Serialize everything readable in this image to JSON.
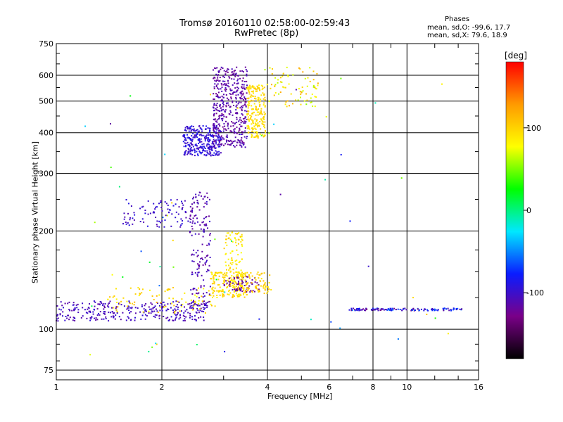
{
  "header": {
    "title": "Tromsø 20160110 02:58:00-02:59:43",
    "subtitle": "RwPretec (8p)"
  },
  "stats": {
    "heading": "Phases",
    "line_o": "mean, sd,O: -99.6, 17.7",
    "line_x": "mean, sd,X:  79.6, 18.9"
  },
  "colorbar": {
    "label": "[deg]",
    "ticks": [
      "100",
      "0",
      "-100"
    ],
    "tick_values": [
      100,
      0,
      -100
    ],
    "range": [
      -180,
      180
    ],
    "colors": [
      "#000000",
      "#7a0088",
      "#0a1cff",
      "#00e8ff",
      "#00ff00",
      "#ffff00",
      "#ff9a00",
      "#ff0000"
    ]
  },
  "chart_data": {
    "type": "scatter",
    "xlabel": "Frequency [MHz]",
    "ylabel": "Stationary phase Virtual Height [km]",
    "xscale": "log",
    "yscale": "log",
    "xlim": [
      1,
      16
    ],
    "ylim": [
      70,
      750
    ],
    "x_ticks": [
      1,
      2,
      4,
      6,
      8,
      10,
      16
    ],
    "x_tick_labels": [
      "1",
      "2",
      "4",
      "6",
      "8",
      "10",
      "16"
    ],
    "y_ticks": [
      75,
      100,
      200,
      300,
      400,
      500,
      600,
      750
    ],
    "y_tick_labels": [
      "75",
      "100",
      "200",
      "300",
      "400",
      "500",
      "600",
      "750"
    ],
    "grid": true,
    "series": [
      {
        "fmin": 1.0,
        "fmax": 2.7,
        "hmin": 106,
        "hmax": 122,
        "phase": -105,
        "spread": 12,
        "n": 320
      },
      {
        "fmin": 1.4,
        "fmax": 2.9,
        "hmin": 112,
        "hmax": 135,
        "phase": 95,
        "spread": 20,
        "n": 90
      },
      {
        "fmin": 2.4,
        "fmax": 2.75,
        "hmin": 118,
        "hmax": 265,
        "phase": -110,
        "spread": 12,
        "n": 160
      },
      {
        "fmin": 1.55,
        "fmax": 2.4,
        "hmin": 205,
        "hmax": 250,
        "phase": -100,
        "spread": 12,
        "n": 90
      },
      {
        "fmin": 2.75,
        "fmax": 3.5,
        "hmin": 125,
        "hmax": 150,
        "phase": 95,
        "spread": 15,
        "n": 180
      },
      {
        "fmin": 3.0,
        "fmax": 3.4,
        "hmin": 130,
        "hmax": 200,
        "phase": 90,
        "spread": 15,
        "n": 90
      },
      {
        "fmin": 3.0,
        "fmax": 3.8,
        "hmin": 130,
        "hmax": 145,
        "phase": -120,
        "spread": 10,
        "n": 60
      },
      {
        "fmin": 3.4,
        "fmax": 4.1,
        "hmin": 128,
        "hmax": 150,
        "phase": 100,
        "spread": 12,
        "n": 70
      },
      {
        "fmin": 2.3,
        "fmax": 2.95,
        "hmin": 340,
        "hmax": 420,
        "phase": -95,
        "spread": 12,
        "n": 300
      },
      {
        "fmin": 2.8,
        "fmax": 3.5,
        "hmin": 360,
        "hmax": 640,
        "phase": -115,
        "spread": 12,
        "n": 430
      },
      {
        "fmin": 3.5,
        "fmax": 3.95,
        "hmin": 385,
        "hmax": 560,
        "phase": 95,
        "spread": 12,
        "n": 220
      },
      {
        "fmin": 3.9,
        "fmax": 5.6,
        "hmin": 480,
        "hmax": 640,
        "phase": 90,
        "spread": 30,
        "n": 80
      },
      {
        "fmin": 6.8,
        "fmax": 14.5,
        "hmin": 114,
        "hmax": 116,
        "phase": -90,
        "spread": 40,
        "n": 130
      },
      {
        "fmin": 1.2,
        "fmax": 14.0,
        "hmin": 80,
        "hmax": 600,
        "phase": 0,
        "spread": 120,
        "n": 60
      }
    ]
  }
}
